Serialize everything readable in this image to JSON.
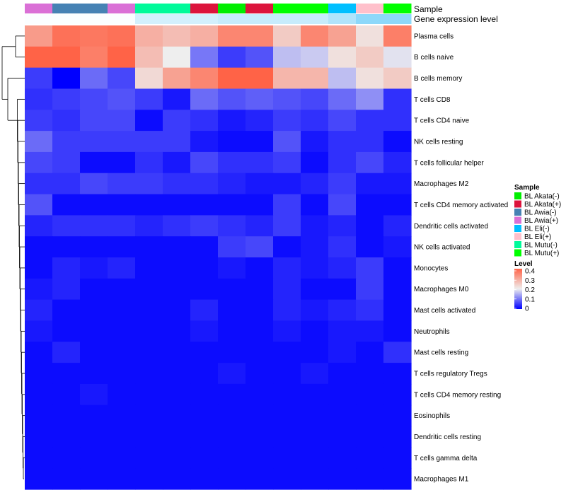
{
  "chart_data": {
    "type": "heatmap",
    "annotation_labels": [
      "Sample",
      "Gene expression level"
    ],
    "rows": [
      "Plasma cells",
      "B cells naive",
      "B cells memory",
      "T cells CD8",
      "T cells CD4 naive",
      "NK cells resting",
      "T cells follicular helper",
      "Macrophages M2",
      "T cells CD4 memory activated",
      "Dendritic cells activated",
      "NK cells activated",
      "Monocytes",
      "Macrophages M0",
      "Mast cells activated",
      "Neutrophils",
      "Mast cells resting",
      "T cells regulatory  Tregs",
      "T cells CD4 memory resting",
      "Eosinophils",
      "Dendritic cells resting",
      "T cells gamma delta",
      "Macrophages M1"
    ],
    "column_samples": [
      "BL Awia(+)",
      "BL Awia(-)",
      "BL Awia(-)",
      "BL Awia(+)",
      "BL Mutu(-)",
      "BL Mutu(-)",
      "BL Akata(+)",
      "BL Akata(-)",
      "BL Akata(+)",
      "BL Mutu(+)",
      "BL Mutu(+)",
      "BL Eli(-)",
      "BL Eli(+)",
      "BL Mutu(+)"
    ],
    "column_expression_level": [
      0.02,
      0.02,
      0.02,
      0.02,
      0.25,
      0.25,
      0.25,
      0.32,
      0.32,
      0.32,
      0.32,
      0.45,
      0.65,
      0.65
    ],
    "values": [
      [
        0.32,
        0.38,
        0.37,
        0.38,
        0.29,
        0.27,
        0.29,
        0.35,
        0.35,
        0.25,
        0.35,
        0.31,
        0.22,
        0.36
      ],
      [
        0.4,
        0.4,
        0.36,
        0.4,
        0.27,
        0.2,
        0.1,
        0.05,
        0.07,
        0.16,
        0.17,
        0.22,
        0.25,
        0.19
      ],
      [
        0.05,
        0.0,
        0.09,
        0.06,
        0.23,
        0.31,
        0.35,
        0.4,
        0.4,
        0.28,
        0.28,
        0.16,
        0.22,
        0.25
      ],
      [
        0.04,
        0.05,
        0.06,
        0.07,
        0.05,
        0.02,
        0.09,
        0.07,
        0.08,
        0.07,
        0.06,
        0.09,
        0.12,
        0.04
      ],
      [
        0.05,
        0.04,
        0.06,
        0.06,
        0.01,
        0.05,
        0.04,
        0.02,
        0.03,
        0.05,
        0.04,
        0.06,
        0.04,
        0.04
      ],
      [
        0.09,
        0.05,
        0.05,
        0.05,
        0.05,
        0.05,
        0.02,
        0.01,
        0.01,
        0.07,
        0.02,
        0.04,
        0.04,
        0.01
      ],
      [
        0.06,
        0.05,
        0.01,
        0.01,
        0.04,
        0.02,
        0.06,
        0.04,
        0.04,
        0.05,
        0.01,
        0.04,
        0.06,
        0.03
      ],
      [
        0.04,
        0.04,
        0.06,
        0.05,
        0.05,
        0.04,
        0.04,
        0.03,
        0.02,
        0.02,
        0.03,
        0.05,
        0.02,
        0.02
      ],
      [
        0.07,
        0.01,
        0.01,
        0.01,
        0.01,
        0.01,
        0.01,
        0.01,
        0.01,
        0.05,
        0.01,
        0.06,
        0.01,
        0.01
      ],
      [
        0.03,
        0.04,
        0.04,
        0.04,
        0.03,
        0.04,
        0.05,
        0.04,
        0.03,
        0.05,
        0.02,
        0.03,
        0.01,
        0.03
      ],
      [
        0.01,
        0.01,
        0.01,
        0.01,
        0.01,
        0.01,
        0.01,
        0.05,
        0.06,
        0.01,
        0.02,
        0.04,
        0.01,
        0.02
      ],
      [
        0.01,
        0.03,
        0.02,
        0.03,
        0.01,
        0.01,
        0.01,
        0.02,
        0.01,
        0.03,
        0.02,
        0.03,
        0.05,
        0.01
      ],
      [
        0.02,
        0.03,
        0.01,
        0.01,
        0.01,
        0.01,
        0.01,
        0.01,
        0.01,
        0.03,
        0.01,
        0.01,
        0.05,
        0.01
      ],
      [
        0.03,
        0.01,
        0.01,
        0.01,
        0.01,
        0.01,
        0.03,
        0.01,
        0.01,
        0.03,
        0.02,
        0.03,
        0.04,
        0.01
      ],
      [
        0.02,
        0.01,
        0.01,
        0.01,
        0.01,
        0.01,
        0.02,
        0.01,
        0.01,
        0.02,
        0.01,
        0.02,
        0.02,
        0.01
      ],
      [
        0.01,
        0.03,
        0.01,
        0.01,
        0.01,
        0.01,
        0.01,
        0.01,
        0.01,
        0.01,
        0.01,
        0.02,
        0.01,
        0.04
      ],
      [
        0.01,
        0.01,
        0.01,
        0.01,
        0.01,
        0.01,
        0.01,
        0.02,
        0.01,
        0.01,
        0.02,
        0.01,
        0.01,
        0.01
      ],
      [
        0.01,
        0.01,
        0.02,
        0.01,
        0.01,
        0.01,
        0.01,
        0.01,
        0.01,
        0.01,
        0.01,
        0.01,
        0.01,
        0.01
      ],
      [
        0.01,
        0.01,
        0.01,
        0.01,
        0.01,
        0.01,
        0.01,
        0.01,
        0.01,
        0.01,
        0.01,
        0.01,
        0.01,
        0.01
      ],
      [
        0.01,
        0.01,
        0.01,
        0.01,
        0.01,
        0.01,
        0.01,
        0.01,
        0.01,
        0.01,
        0.01,
        0.01,
        0.01,
        0.01
      ],
      [
        0.01,
        0.01,
        0.01,
        0.01,
        0.01,
        0.01,
        0.01,
        0.01,
        0.01,
        0.01,
        0.01,
        0.01,
        0.01,
        0.01
      ],
      [
        0.01,
        0.01,
        0.01,
        0.01,
        0.01,
        0.01,
        0.01,
        0.01,
        0.01,
        0.01,
        0.01,
        0.01,
        0.01,
        0.01
      ]
    ],
    "color_scale": {
      "low": "#0000ff",
      "mid": "#eeeeee",
      "high": "#ff6347",
      "domain": [
        0,
        0.2,
        0.4
      ]
    },
    "annotation_bar_scale": {
      "low": "#ffffff",
      "high": "#4fc3f7"
    },
    "legend_sample": {
      "title": "Sample",
      "entries": [
        {
          "label": "BL Akata(-)",
          "color": "#00ee00"
        },
        {
          "label": "BL Akata(+)",
          "color": "#dc143c"
        },
        {
          "label": "BL Awia(-)",
          "color": "#4682b4"
        },
        {
          "label": "BL Awia(+)",
          "color": "#da70d6"
        },
        {
          "label": "BL Eli(-)",
          "color": "#00bfff"
        },
        {
          "label": "BL Eli(+)",
          "color": "#ffc0cb"
        },
        {
          "label": "BL Mutu(-)",
          "color": "#00fa9a"
        },
        {
          "label": "BL Mutu(+)",
          "color": "#00ff00"
        }
      ]
    },
    "legend_level": {
      "title": "Level",
      "ticks": [
        0.4,
        0.3,
        0.2,
        0.1,
        0
      ],
      "tick_labels": [
        "0.4",
        "0.3",
        "0.2",
        "0.1",
        "0"
      ]
    },
    "legend_placement": "right",
    "dendrogram": "rows"
  }
}
